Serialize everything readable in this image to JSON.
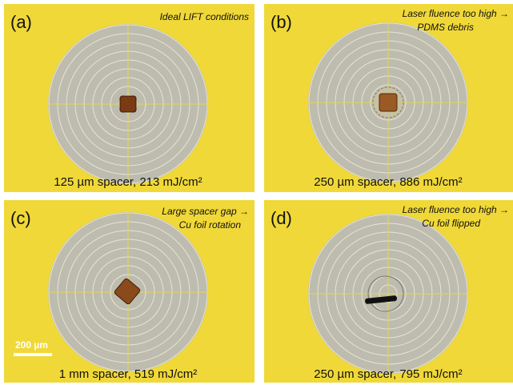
{
  "panels": [
    {
      "label": "(a)",
      "annotation": [
        "Ideal LIFT conditions"
      ],
      "caption": "125 µm spacer, 213 mJ/cm²"
    },
    {
      "label": "(b)",
      "annotation": [
        "Laser fluence too high →",
        "PDMS debris"
      ],
      "caption": "250 µm spacer, 886 mJ/cm²"
    },
    {
      "label": "(c)",
      "annotation": [
        "Large spacer gap →",
        "Cu foil rotation"
      ],
      "caption": "1 mm spacer, 519 mJ/cm²",
      "scale_bar": "200 µm"
    },
    {
      "label": "(d)",
      "annotation": [
        "Laser fluence too high →",
        "Cu foil flipped"
      ],
      "caption": "250 µm spacer, 795 mJ/cm²"
    }
  ]
}
